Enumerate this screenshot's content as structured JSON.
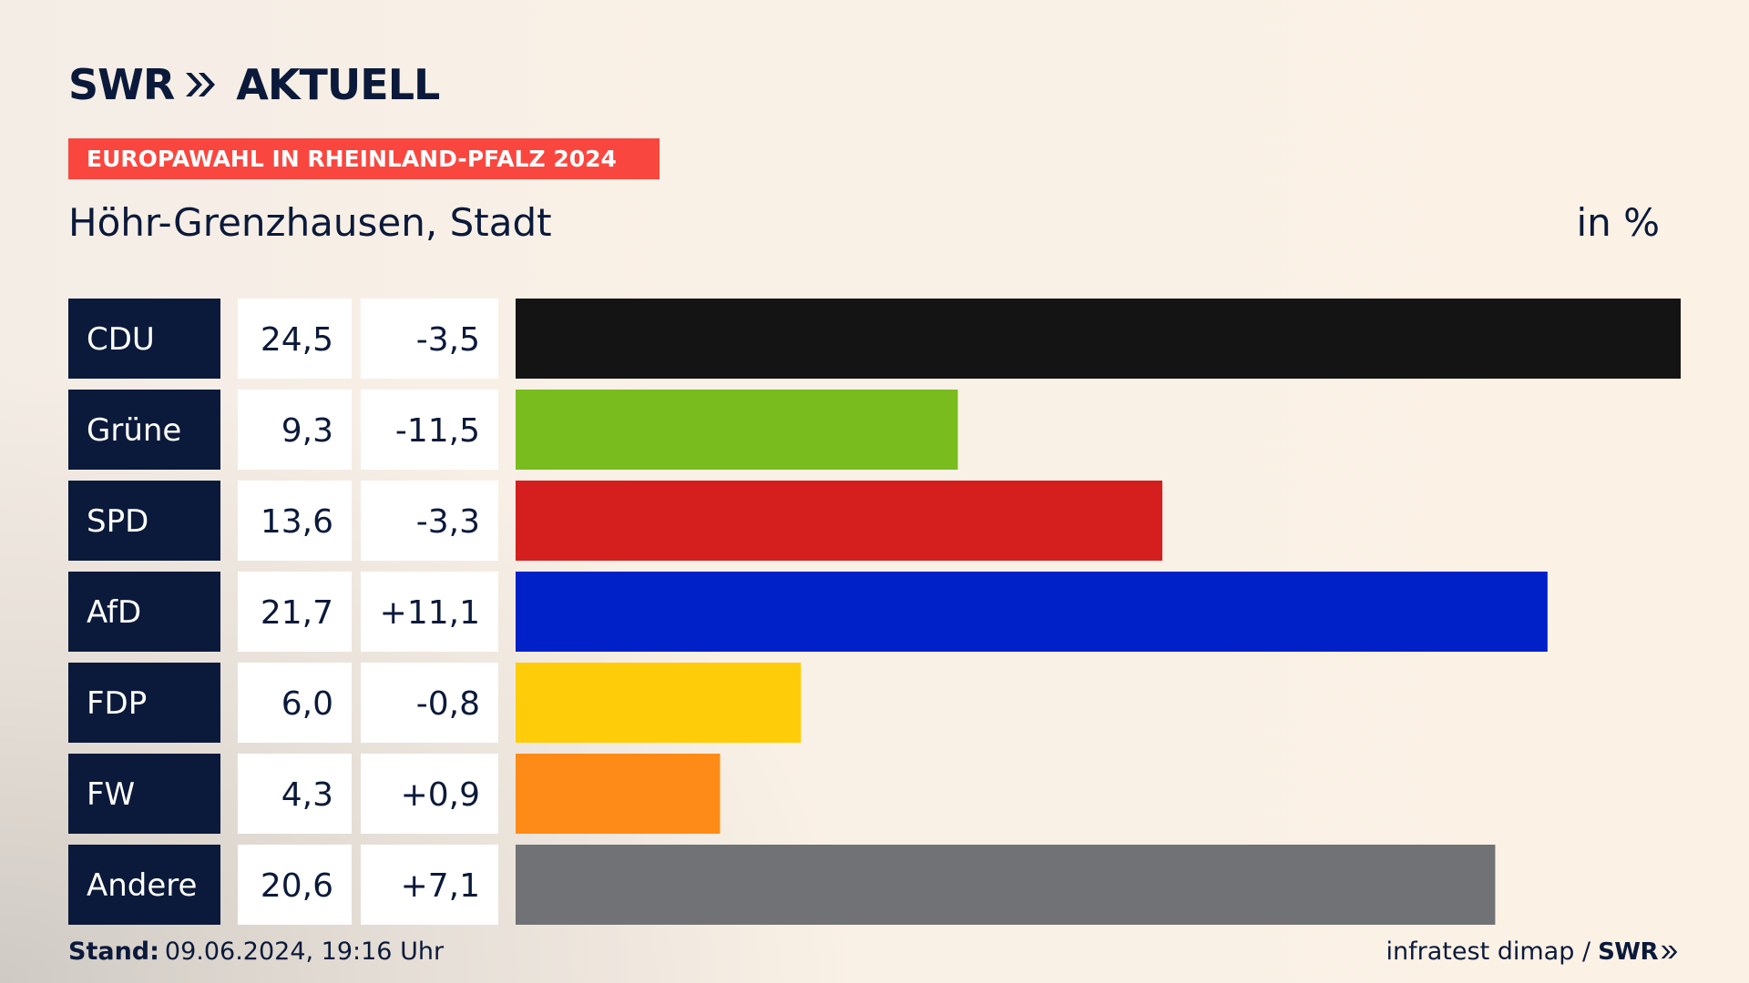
{
  "header": {
    "logo_text": "SWR",
    "logo_suffix": "AKTUELL",
    "logo_icon": "double-chevron-icon",
    "election_label": "EUROPAWAHL IN RHEINLAND-PFALZ 2024",
    "region": "Höhr-Grenzhausen, Stadt",
    "unit": "in %"
  },
  "colors": {
    "navy": "#0b1a3a",
    "label_bg": "#f9473f",
    "cell_bg": "#ffffff"
  },
  "chart_data": {
    "type": "bar",
    "orientation": "horizontal",
    "unit": "%",
    "categories": [
      "CDU",
      "Grüne",
      "SPD",
      "AfD",
      "FDP",
      "FW",
      "Andere"
    ],
    "values": [
      24.5,
      9.3,
      13.6,
      21.7,
      6.0,
      4.3,
      20.6
    ],
    "value_labels": [
      "24,5",
      "9,3",
      "13,6",
      "21,7",
      "6,0",
      "4,3",
      "20,6"
    ],
    "changes": [
      -3.5,
      -11.5,
      -3.3,
      11.1,
      -0.8,
      0.9,
      7.1
    ],
    "change_labels": [
      "-3,5",
      "-11,5",
      "-3,3",
      "+11,1",
      "-0,8",
      "+0,9",
      "+7,1"
    ],
    "colors": [
      "#141414",
      "#79bc1e",
      "#d51e1e",
      "#0021c8",
      "#ffcc09",
      "#fe8b18",
      "#717275"
    ]
  },
  "footer": {
    "stand_label": "Stand:",
    "stand_value": "09.06.2024, 19:16 Uhr",
    "source": "infratest dimap /",
    "source_logo": "SWR"
  }
}
